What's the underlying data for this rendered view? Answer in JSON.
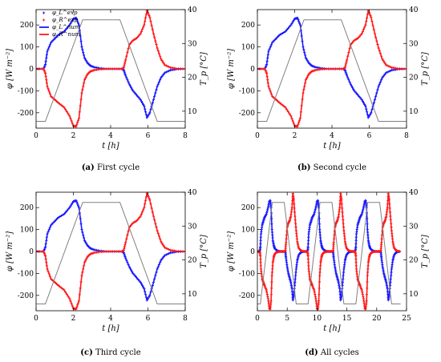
{
  "labels": {
    "ylabel": "φ [W m⁻²]",
    "y2label": "T_p [°C]",
    "xlabel": "t [h]"
  },
  "legend": {
    "entries": [
      {
        "symbol": "markers",
        "color": "#1a1aff",
        "label": "φ_L^exp"
      },
      {
        "symbol": "markers",
        "color": "#ff1a1a",
        "label": "φ_R^exp"
      },
      {
        "symbol": "line",
        "color": "#1a1aff",
        "label": "φ_L^num"
      },
      {
        "symbol": "line",
        "color": "#ff1a1a",
        "label": "φ_R^num"
      }
    ]
  },
  "panels": [
    {
      "tag": "(a)",
      "caption": "First cycle"
    },
    {
      "tag": "(b)",
      "caption": "Second cycle"
    },
    {
      "tag": "(c)",
      "caption": "Third cycle"
    },
    {
      "tag": "(d)",
      "caption": "All cycles"
    }
  ],
  "colors": {
    "left_flux": "#1a1aff",
    "right_flux": "#ff1a1a",
    "temperature": "#808080"
  },
  "chart_data": [
    {
      "type": "line",
      "panel": "a",
      "xlabel": "t [h]",
      "ylabel": "φ [W m⁻²]",
      "y2label": "T_p [°C]",
      "xlim": [
        0,
        8
      ],
      "ylim": [
        -270,
        270
      ],
      "y2lim": [
        5,
        40
      ],
      "xticks": [
        0,
        2,
        4,
        6,
        8
      ],
      "yticks": [
        -200,
        -100,
        0,
        100,
        200
      ],
      "y2ticks": [
        10,
        20,
        30,
        40
      ],
      "legend": "top-left",
      "grid": false,
      "series": [
        {
          "name": "φ_L^exp / φ_L^num",
          "color": "#1a1aff",
          "x": [
            0,
            0.4,
            0.5,
            0.6,
            0.8,
            1.0,
            1.2,
            1.5,
            1.8,
            2.0,
            2.15,
            2.3,
            2.45,
            2.6,
            2.75,
            2.9,
            3.1,
            3.4,
            3.8,
            4.2,
            4.6,
            4.7,
            4.8,
            5.0,
            5.2,
            5.4,
            5.6,
            5.8,
            5.95,
            6.1,
            6.3,
            6.5,
            6.7,
            6.9,
            7.2,
            7.5,
            8.0
          ],
          "y": [
            0,
            0,
            20,
            80,
            120,
            138,
            155,
            170,
            200,
            228,
            232,
            200,
            100,
            50,
            28,
            15,
            8,
            3,
            0,
            0,
            0,
            -5,
            -30,
            -70,
            -100,
            -120,
            -140,
            -170,
            -222,
            -200,
            -140,
            -80,
            -40,
            -18,
            -6,
            -2,
            0
          ]
        },
        {
          "name": "φ_R^exp / φ_R^num",
          "color": "#ff1a1a",
          "x": [
            0,
            0.4,
            0.5,
            0.6,
            0.8,
            1.0,
            1.2,
            1.5,
            1.8,
            2.0,
            2.15,
            2.3,
            2.45,
            2.6,
            2.75,
            2.9,
            3.1,
            3.4,
            3.8,
            4.2,
            4.6,
            4.7,
            4.8,
            5.0,
            5.2,
            5.4,
            5.6,
            5.8,
            5.95,
            6.1,
            6.3,
            6.5,
            6.7,
            6.9,
            7.2,
            7.5,
            8.0
          ],
          "y": [
            0,
            0,
            -20,
            -80,
            -125,
            -140,
            -155,
            -175,
            -215,
            -260,
            -262,
            -225,
            -110,
            -50,
            -25,
            -12,
            -6,
            -2,
            0,
            0,
            0,
            5,
            40,
            110,
            130,
            140,
            160,
            200,
            265,
            235,
            160,
            95,
            45,
            18,
            6,
            2,
            0
          ]
        },
        {
          "name": "T_p",
          "color": "#808080",
          "axis": "right",
          "x": [
            0,
            0.5,
            2.5,
            4.5,
            6.5,
            8
          ],
          "y": [
            7,
            7,
            37,
            37,
            7,
            7
          ]
        }
      ]
    },
    {
      "type": "line",
      "panel": "b",
      "xlabel": "t [h]",
      "ylabel": "φ [W m⁻²]",
      "y2label": "T_p [°C]",
      "xlim": [
        0,
        8
      ],
      "ylim": [
        -270,
        270
      ],
      "y2lim": [
        5,
        40
      ],
      "xticks": [
        0,
        2,
        4,
        6,
        8
      ],
      "yticks": [
        -200,
        -100,
        0,
        100,
        200
      ],
      "y2ticks": [
        10,
        20,
        30,
        40
      ],
      "grid": false,
      "series": [
        {
          "name": "φ_L",
          "color": "#1a1aff",
          "x": [
            0,
            0.4,
            0.5,
            0.6,
            0.8,
            1.0,
            1.2,
            1.5,
            1.8,
            2.0,
            2.15,
            2.3,
            2.45,
            2.6,
            2.75,
            2.9,
            3.1,
            3.4,
            3.8,
            4.2,
            4.6,
            4.7,
            4.8,
            5.0,
            5.2,
            5.4,
            5.6,
            5.8,
            5.95,
            6.1,
            6.3,
            6.5,
            6.7,
            6.9,
            7.2,
            7.5,
            8.0
          ],
          "y": [
            0,
            0,
            20,
            80,
            120,
            138,
            155,
            170,
            200,
            228,
            232,
            200,
            100,
            50,
            28,
            15,
            8,
            3,
            0,
            0,
            0,
            -5,
            -30,
            -70,
            -100,
            -120,
            -140,
            -170,
            -222,
            -200,
            -140,
            -80,
            -40,
            -18,
            -6,
            -2,
            0
          ]
        },
        {
          "name": "φ_R",
          "color": "#ff1a1a",
          "x": [
            0,
            0.4,
            0.5,
            0.6,
            0.8,
            1.0,
            1.2,
            1.5,
            1.8,
            2.0,
            2.15,
            2.3,
            2.45,
            2.6,
            2.75,
            2.9,
            3.1,
            3.4,
            3.8,
            4.2,
            4.6,
            4.7,
            4.8,
            5.0,
            5.2,
            5.4,
            5.6,
            5.8,
            5.95,
            6.1,
            6.3,
            6.5,
            6.7,
            6.9,
            7.2,
            7.5,
            8.0
          ],
          "y": [
            0,
            0,
            -20,
            -80,
            -125,
            -140,
            -155,
            -175,
            -215,
            -260,
            -262,
            -225,
            -110,
            -50,
            -25,
            -12,
            -6,
            -2,
            0,
            0,
            0,
            5,
            40,
            110,
            130,
            140,
            160,
            200,
            265,
            235,
            160,
            95,
            45,
            18,
            6,
            2,
            0
          ]
        },
        {
          "name": "T_p",
          "color": "#808080",
          "axis": "right",
          "x": [
            0,
            0.5,
            2.5,
            4.5,
            6.5,
            8
          ],
          "y": [
            7,
            7,
            37,
            37,
            7,
            7
          ]
        }
      ]
    },
    {
      "type": "line",
      "panel": "c",
      "xlabel": "t [h]",
      "ylabel": "φ [W m⁻²]",
      "y2label": "T_p [°C]",
      "xlim": [
        0,
        8
      ],
      "ylim": [
        -270,
        270
      ],
      "y2lim": [
        5,
        40
      ],
      "xticks": [
        0,
        2,
        4,
        6,
        8
      ],
      "yticks": [
        -200,
        -100,
        0,
        100,
        200
      ],
      "y2ticks": [
        10,
        20,
        30,
        40
      ],
      "grid": false,
      "series": [
        {
          "name": "φ_L",
          "color": "#1a1aff",
          "x": [
            0,
            0.4,
            0.5,
            0.6,
            0.8,
            1.0,
            1.2,
            1.5,
            1.8,
            2.0,
            2.15,
            2.3,
            2.45,
            2.6,
            2.75,
            2.9,
            3.1,
            3.4,
            3.8,
            4.2,
            4.6,
            4.7,
            4.8,
            5.0,
            5.2,
            5.4,
            5.6,
            5.8,
            5.95,
            6.1,
            6.3,
            6.5,
            6.7,
            6.9,
            7.2,
            7.5,
            8.0
          ],
          "y": [
            0,
            0,
            20,
            80,
            120,
            138,
            155,
            170,
            200,
            228,
            232,
            200,
            100,
            50,
            28,
            15,
            8,
            3,
            0,
            0,
            0,
            -5,
            -30,
            -70,
            -100,
            -120,
            -140,
            -170,
            -222,
            -200,
            -140,
            -80,
            -40,
            -18,
            -6,
            -2,
            0
          ]
        },
        {
          "name": "φ_R",
          "color": "#ff1a1a",
          "x": [
            0,
            0.4,
            0.5,
            0.6,
            0.8,
            1.0,
            1.2,
            1.5,
            1.8,
            2.0,
            2.15,
            2.3,
            2.45,
            2.6,
            2.75,
            2.9,
            3.1,
            3.4,
            3.8,
            4.2,
            4.6,
            4.7,
            4.8,
            5.0,
            5.2,
            5.4,
            5.6,
            5.8,
            5.95,
            6.1,
            6.3,
            6.5,
            6.7,
            6.9,
            7.2,
            7.5,
            8.0
          ],
          "y": [
            0,
            0,
            -20,
            -80,
            -125,
            -140,
            -155,
            -175,
            -215,
            -260,
            -262,
            -225,
            -110,
            -50,
            -25,
            -12,
            -6,
            -2,
            0,
            0,
            0,
            5,
            40,
            110,
            130,
            140,
            160,
            200,
            265,
            235,
            160,
            95,
            45,
            18,
            6,
            2,
            0
          ]
        },
        {
          "name": "T_p",
          "color": "#808080",
          "axis": "right",
          "x": [
            0,
            0.5,
            2.5,
            4.5,
            6.5,
            8
          ],
          "y": [
            7,
            7,
            37,
            37,
            7,
            7
          ]
        }
      ]
    },
    {
      "type": "line",
      "panel": "d",
      "xlabel": "t [h]",
      "ylabel": "φ [W m⁻²]",
      "y2label": "T_p [°C]",
      "xlim": [
        0,
        25
      ],
      "ylim": [
        -270,
        270
      ],
      "y2lim": [
        5,
        40
      ],
      "xticks": [
        0,
        5,
        10,
        15,
        20,
        25
      ],
      "yticks": [
        -200,
        -100,
        0,
        100,
        200
      ],
      "y2ticks": [
        10,
        20,
        30,
        40
      ],
      "grid": false,
      "cycles": 3,
      "cycle_period": 8,
      "series": [
        {
          "name": "φ_L",
          "color": "#1a1aff",
          "x": [
            0,
            0.4,
            0.5,
            0.6,
            0.8,
            1.0,
            1.2,
            1.5,
            1.8,
            2.0,
            2.15,
            2.3,
            2.45,
            2.6,
            2.75,
            2.9,
            3.1,
            3.4,
            3.8,
            4.2,
            4.6,
            4.7,
            4.8,
            5.0,
            5.2,
            5.4,
            5.6,
            5.8,
            5.95,
            6.1,
            6.3,
            6.5,
            6.7,
            6.9,
            7.2,
            7.5,
            8.0
          ],
          "y": [
            0,
            0,
            20,
            80,
            120,
            138,
            155,
            170,
            200,
            228,
            232,
            200,
            100,
            50,
            28,
            15,
            8,
            3,
            0,
            0,
            0,
            -5,
            -30,
            -70,
            -100,
            -120,
            -140,
            -170,
            -222,
            -200,
            -140,
            -80,
            -40,
            -18,
            -6,
            -2,
            0
          ]
        },
        {
          "name": "φ_R",
          "color": "#ff1a1a",
          "x": [
            0,
            0.4,
            0.5,
            0.6,
            0.8,
            1.0,
            1.2,
            1.5,
            1.8,
            2.0,
            2.15,
            2.3,
            2.45,
            2.6,
            2.75,
            2.9,
            3.1,
            3.4,
            3.8,
            4.2,
            4.6,
            4.7,
            4.8,
            5.0,
            5.2,
            5.4,
            5.6,
            5.8,
            5.95,
            6.1,
            6.3,
            6.5,
            6.7,
            6.9,
            7.2,
            7.5,
            8.0
          ],
          "y": [
            0,
            0,
            -20,
            -80,
            -125,
            -140,
            -155,
            -175,
            -215,
            -260,
            -262,
            -225,
            -110,
            -50,
            -25,
            -12,
            -6,
            -2,
            0,
            0,
            0,
            5,
            40,
            110,
            130,
            140,
            160,
            200,
            265,
            235,
            160,
            95,
            45,
            18,
            6,
            2,
            0
          ]
        },
        {
          "name": "T_p",
          "color": "#808080",
          "axis": "right",
          "x": [
            0,
            0.5,
            2.5,
            4.5,
            6.5,
            8
          ],
          "y": [
            7,
            7,
            37,
            37,
            7,
            7
          ]
        }
      ]
    }
  ]
}
